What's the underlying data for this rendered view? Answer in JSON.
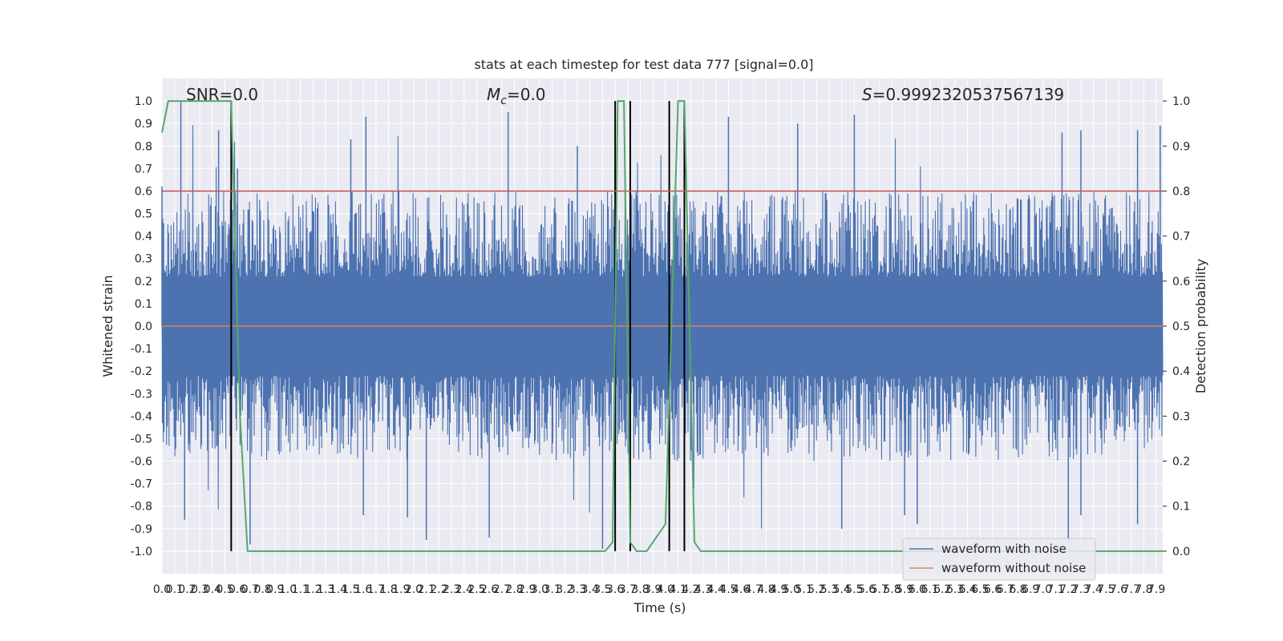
{
  "chart_data": {
    "type": "line",
    "title": "stats at each timestep for test data 777 [signal=0.0]",
    "xlabel": "Time (s)",
    "ylabel_left": "Whitened strain",
    "ylabel_right": "Detection probability",
    "xlim": [
      0.0,
      7.95
    ],
    "ylim_left": [
      -1.1,
      1.1
    ],
    "ylim_right": [
      -0.05,
      1.05
    ],
    "grid": true,
    "x_ticks": [
      0.0,
      0.1,
      0.2,
      0.3,
      0.4,
      0.5,
      0.6,
      0.7,
      0.8,
      0.9,
      1.0,
      1.1,
      1.2,
      1.3,
      1.4,
      1.5,
      1.6,
      1.7,
      1.8,
      1.9,
      2.0,
      2.1,
      2.2,
      2.3,
      2.4,
      2.5,
      2.6,
      2.7,
      2.8,
      2.9,
      3.0,
      3.1,
      3.2,
      3.3,
      3.4,
      3.5,
      3.6,
      3.7,
      3.8,
      3.9,
      4.0,
      4.1,
      4.2,
      4.3,
      4.4,
      4.5,
      4.6,
      4.7,
      4.8,
      4.9,
      5.0,
      5.1,
      5.2,
      5.3,
      5.4,
      5.5,
      5.6,
      5.7,
      5.8,
      5.9,
      6.0,
      6.1,
      6.2,
      6.3,
      6.4,
      6.5,
      6.6,
      6.7,
      6.8,
      6.9,
      7.0,
      7.1,
      7.2,
      7.3,
      7.4,
      7.5,
      7.6,
      7.7,
      7.8,
      7.9
    ],
    "y_ticks_left": [
      "1.0",
      "0.9",
      "0.8",
      "0.7",
      "0.6",
      "0.5",
      "0.4",
      "0.3",
      "0.2",
      "0.1",
      "0.0",
      "-0.1",
      "-0.2",
      "-0.3",
      "-0.4",
      "-0.5",
      "-0.6",
      "-0.7",
      "-0.8",
      "-0.9",
      "-1.0"
    ],
    "y_ticks_right": [
      "1.0",
      "0.9",
      "0.8",
      "0.7",
      "0.6",
      "0.5",
      "0.4",
      "0.3",
      "0.2",
      "0.1",
      "0.0"
    ],
    "annotations": {
      "snr": "SNR=0.0",
      "mc_symbol": "M",
      "mc_sub": "c",
      "mc_value": "=0.0",
      "s_symbol": "S",
      "s_value": "=0.9992320537567139"
    },
    "series": [
      {
        "name": "waveform with noise",
        "color": "#4c72b0",
        "description": "dense whitened-strain noise, envelope roughly -0.9 to 0.95",
        "peaks_upper": [
          [
            0.0,
            0.62
          ],
          [
            0.15,
            1.0
          ],
          [
            0.45,
            0.87
          ],
          [
            0.6,
            0.7
          ],
          [
            1.5,
            0.83
          ],
          [
            1.62,
            0.93
          ],
          [
            2.75,
            0.95
          ],
          [
            3.3,
            0.8
          ],
          [
            4.5,
            0.93
          ],
          [
            5.05,
            0.9
          ],
          [
            5.5,
            0.94
          ],
          [
            7.15,
            0.86
          ],
          [
            7.3,
            0.87
          ],
          [
            7.75,
            0.87
          ],
          [
            7.93,
            0.89
          ]
        ],
        "peaks_lower": [
          [
            0.18,
            -0.86
          ],
          [
            0.7,
            -0.97
          ],
          [
            1.6,
            -0.84
          ],
          [
            1.95,
            -0.85
          ],
          [
            2.1,
            -0.95
          ],
          [
            2.6,
            -0.94
          ],
          [
            3.5,
            -0.99
          ],
          [
            5.4,
            -0.9
          ],
          [
            5.9,
            -0.84
          ],
          [
            6.0,
            -0.88
          ],
          [
            7.2,
            -0.96
          ],
          [
            7.3,
            -0.84
          ],
          [
            7.75,
            -0.88
          ]
        ]
      },
      {
        "name": "waveform without noise",
        "color": "#dd8452",
        "x": [
          0.0,
          7.95
        ],
        "y": [
          0.0,
          0.0
        ]
      },
      {
        "name": "detection probability",
        "color": "#55a868",
        "axis": "right",
        "x": [
          0.0,
          0.05,
          0.1,
          0.55,
          0.62,
          0.68,
          3.52,
          3.58,
          3.62,
          3.67,
          3.72,
          3.77,
          3.85,
          4.0,
          4.1,
          4.15,
          4.23,
          4.28,
          4.38,
          8.0
        ],
        "y": [
          0.93,
          1.0,
          1.0,
          1.0,
          0.3,
          0.0,
          0.0,
          0.02,
          1.0,
          1.0,
          0.02,
          0.0,
          0.0,
          0.06,
          1.0,
          1.0,
          0.02,
          0.0,
          0.0,
          0.0
        ]
      }
    ],
    "threshold": {
      "value": 0.8,
      "axis": "right",
      "color": "#c44e52"
    },
    "vertical_lines": [
      0.55,
      3.6,
      3.72,
      4.03,
      4.15
    ],
    "legend": {
      "position": "bottom-right",
      "entries": [
        "waveform with noise",
        "waveform without noise"
      ]
    }
  }
}
